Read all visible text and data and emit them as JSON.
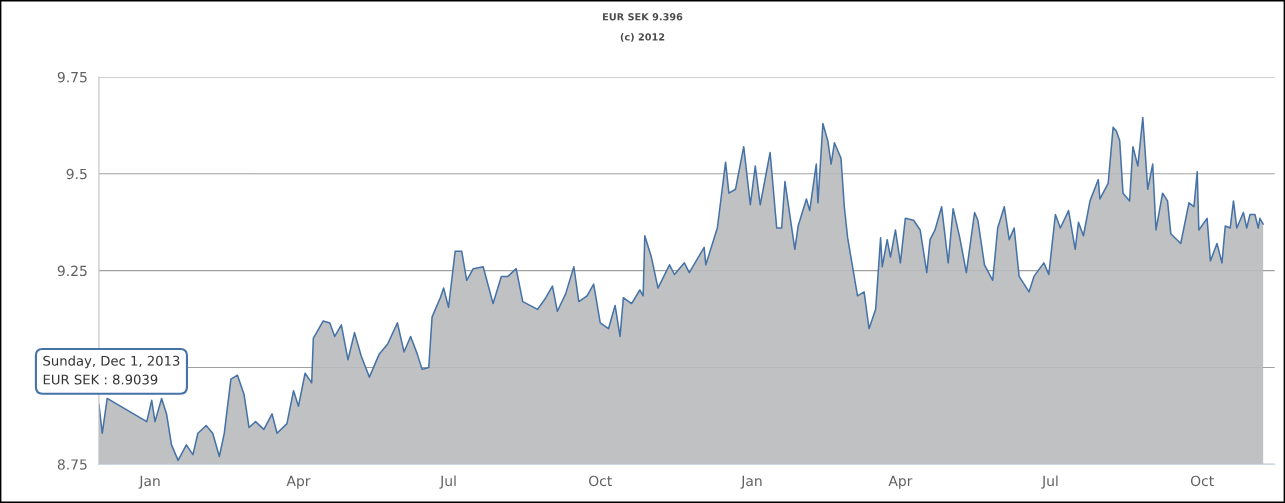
{
  "chart_data": {
    "type": "area",
    "title": "EUR SEK 9.396",
    "subtitle": "(c) 2012",
    "annotations": [
      "Sunday, Dec 1, 2013\nEUR SEK : 8.9039"
    ],
    "x": [
      "2012-12-01",
      "2012-12-03",
      "2012-12-06",
      "2012-12-15",
      "2012-12-28",
      "2012-12-30",
      "2013-01-02",
      "2013-01-04",
      "2013-01-08",
      "2013-01-11",
      "2013-01-14",
      "2013-01-18",
      "2013-01-23",
      "2013-01-27",
      "2013-01-30",
      "2013-02-04",
      "2013-02-08",
      "2013-02-12",
      "2013-02-15",
      "2013-02-19",
      "2013-02-23",
      "2013-02-27",
      "2013-03-02",
      "2013-03-06",
      "2013-03-11",
      "2013-03-16",
      "2013-03-19",
      "2013-03-25",
      "2013-03-29",
      "2013-04-01",
      "2013-04-05",
      "2013-04-09",
      "2013-04-10",
      "2013-04-16",
      "2013-04-20",
      "2013-04-23",
      "2013-04-27",
      "2013-05-01",
      "2013-05-05",
      "2013-05-09",
      "2013-05-14",
      "2013-05-20",
      "2013-05-25",
      "2013-05-31",
      "2013-06-04",
      "2013-06-08",
      "2013-06-12",
      "2013-06-15",
      "2013-06-19",
      "2013-06-21",
      "2013-06-26",
      "2013-06-28",
      "2013-07-01",
      "2013-07-05",
      "2013-07-09",
      "2013-07-12",
      "2013-07-16",
      "2013-07-22",
      "2013-07-28",
      "2013-08-02",
      "2013-08-06",
      "2013-08-11",
      "2013-08-15",
      "2013-08-24",
      "2013-08-29",
      "2013-09-02",
      "2013-09-05",
      "2013-09-10",
      "2013-09-15",
      "2013-09-18",
      "2013-09-23",
      "2013-09-27",
      "2013-10-01",
      "2013-10-06",
      "2013-10-10",
      "2013-10-13",
      "2013-10-15",
      "2013-10-20",
      "2013-10-25",
      "2013-10-27",
      "2013-10-28",
      "2013-11-01",
      "2013-11-05",
      "2013-11-12",
      "2013-11-15",
      "2013-11-21",
      "2013-11-24",
      "2013-12-03",
      "2013-12-04",
      "2013-12-11",
      "2013-12-16",
      "2013-12-18",
      "2013-12-22",
      "2013-12-27",
      "2013-12-31",
      "2014-01-03",
      "2014-01-06",
      "2014-01-12",
      "2014-01-16",
      "2014-01-19",
      "2014-01-21",
      "2014-01-27",
      "2014-01-29",
      "2014-02-03",
      "2014-02-05",
      "2014-02-09",
      "2014-02-10",
      "2014-02-13",
      "2014-02-16",
      "2014-02-18",
      "2014-02-20",
      "2014-02-24",
      "2014-02-26",
      "2014-02-28",
      "2014-03-04",
      "2014-03-06",
      "2014-03-10",
      "2014-03-13",
      "2014-03-17",
      "2014-03-20",
      "2014-03-21",
      "2014-03-24",
      "2014-03-26",
      "2014-03-29",
      "2014-04-01",
      "2014-04-04",
      "2014-04-09",
      "2014-04-13",
      "2014-04-17",
      "2014-04-19",
      "2014-04-22",
      "2014-04-26",
      "2014-04-30",
      "2014-05-03",
      "2014-05-07",
      "2014-05-11",
      "2014-05-16",
      "2014-05-18",
      "2014-05-22",
      "2014-05-27",
      "2014-05-30",
      "2014-06-03",
      "2014-06-06",
      "2014-06-09",
      "2014-06-12",
      "2014-06-18",
      "2014-06-21",
      "2014-06-27",
      "2014-06-30",
      "2014-07-04",
      "2014-07-07",
      "2014-07-12",
      "2014-07-16",
      "2014-07-18",
      "2014-07-21",
      "2014-07-25",
      "2014-07-30",
      "2014-07-31",
      "2014-08-05",
      "2014-08-08",
      "2014-08-10",
      "2014-08-12",
      "2014-08-14",
      "2014-08-18",
      "2014-08-20",
      "2014-08-23",
      "2014-08-26",
      "2014-08-29",
      "2014-09-01",
      "2014-09-03",
      "2014-09-07",
      "2014-09-10",
      "2014-09-12",
      "2014-09-18",
      "2014-09-23",
      "2014-09-26",
      "2014-09-28",
      "2014-09-29",
      "2014-10-04",
      "2014-10-06",
      "2014-10-10",
      "2014-10-13",
      "2014-10-15",
      "2014-10-18",
      "2014-10-20",
      "2014-10-22",
      "2014-10-26",
      "2014-10-28",
      "2014-10-30",
      "2014-11-02",
      "2014-11-04",
      "2014-11-05",
      "2014-11-07"
    ],
    "series": [
      {
        "color": "#4572a7",
        "values": [
          8.905,
          8.83,
          8.92,
          null,
          null,
          8.86,
          8.915,
          8.86,
          8.92,
          8.88,
          8.8,
          8.76,
          8.8,
          8.775,
          8.83,
          8.85,
          8.83,
          8.77,
          8.83,
          8.97,
          8.98,
          8.93,
          8.845,
          8.86,
          8.84,
          8.88,
          8.83,
          8.855,
          8.94,
          8.9,
          8.985,
          8.96,
          9.075,
          9.12,
          9.115,
          9.08,
          9.11,
          9.02,
          9.09,
          9.03,
          8.975,
          9.035,
          9.06,
          9.115,
          9.04,
          9.08,
          9.035,
          8.995,
          9.0,
          9.13,
          9.18,
          9.205,
          9.155,
          9.3,
          9.3,
          9.225,
          9.255,
          9.26,
          9.165,
          9.235,
          9.235,
          9.255,
          9.17,
          9.15,
          9.18,
          9.21,
          9.145,
          9.19,
          9.26,
          9.17,
          9.185,
          9.215,
          9.115,
          9.1,
          9.16,
          9.08,
          9.18,
          9.165,
          9.2,
          9.185,
          9.34,
          9.285,
          9.205,
          9.265,
          9.24,
          9.27,
          9.245,
          9.31,
          9.265,
          9.36,
          9.53,
          9.45,
          9.46,
          9.57,
          9.42,
          9.52,
          9.42,
          9.555,
          9.36,
          9.36,
          9.48,
          9.305,
          9.365,
          9.435,
          9.405,
          9.525,
          9.425,
          9.63,
          9.585,
          9.525,
          9.58,
          9.54,
          9.415,
          9.335,
          9.235,
          9.185,
          9.195,
          9.1,
          9.15,
          9.335,
          9.26,
          9.33,
          9.285,
          9.355,
          9.27,
          9.385,
          9.38,
          9.355,
          9.245,
          9.33,
          9.355,
          9.415,
          9.27,
          9.41,
          9.335,
          9.245,
          9.4,
          9.38,
          9.265,
          9.225,
          9.36,
          9.415,
          9.33,
          9.36,
          9.235,
          9.195,
          9.235,
          9.27,
          9.24,
          9.395,
          9.36,
          9.405,
          9.305,
          9.375,
          9.34,
          9.43,
          9.485,
          9.435,
          9.475,
          9.62,
          9.61,
          9.585,
          9.45,
          9.43,
          9.57,
          9.52,
          9.645,
          9.46,
          9.525,
          9.355,
          9.45,
          9.43,
          9.345,
          9.32,
          9.425,
          9.415,
          9.505,
          9.355,
          9.385,
          9.275,
          9.32,
          9.27,
          9.365,
          9.36,
          9.43,
          9.36,
          9.4,
          9.36,
          9.395,
          9.395,
          9.36,
          9.385,
          9.37
        ]
      }
    ],
    "xlim": [
      "2012-12-01",
      "2014-11-14"
    ],
    "xticks": [
      {
        "value": "2013-01-01",
        "label": "Jan"
      },
      {
        "value": "2013-04-01",
        "label": "Apr"
      },
      {
        "value": "2013-07-01",
        "label": "Jul"
      },
      {
        "value": "2013-10-01",
        "label": "Oct"
      },
      {
        "value": "2014-01-01",
        "label": "Jan"
      },
      {
        "value": "2014-04-01",
        "label": "Apr"
      },
      {
        "value": "2014-07-01",
        "label": "Jul"
      },
      {
        "value": "2014-10-01",
        "label": "Oct"
      }
    ],
    "ylim": [
      8.75,
      9.75
    ],
    "yticks": [
      8.75,
      {
        "value": 9,
        "label": null
      },
      9.25,
      9.5,
      9.75
    ],
    "grid": "y"
  }
}
